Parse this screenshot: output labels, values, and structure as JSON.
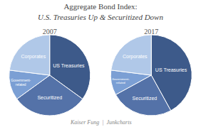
{
  "title": "Aggregate Bond Index:",
  "subtitle": "U.S. Treasuries Up & Securitized Down",
  "annotations": [
    "Kaiser Fung  |  Junkcharts"
  ],
  "chart_data": [
    {
      "type": "pie",
      "title": "2007",
      "categories": [
        "US Treasuries",
        "Securitized",
        "Government-\nrelated",
        "Corporates"
      ],
      "values": [
        35,
        30,
        12,
        23
      ],
      "colors": [
        "#3d5a8a",
        "#5472a8",
        "#7b9fd4",
        "#b0c8e8"
      ]
    },
    {
      "type": "pie",
      "title": "2017",
      "categories": [
        "US Treasuries",
        "Securitized",
        "Government-\nrelated",
        "Corporates"
      ],
      "values": [
        42,
        25,
        10,
        23
      ],
      "colors": [
        "#3d5a8a",
        "#5472a8",
        "#7b9fd4",
        "#b0c8e8"
      ]
    }
  ]
}
